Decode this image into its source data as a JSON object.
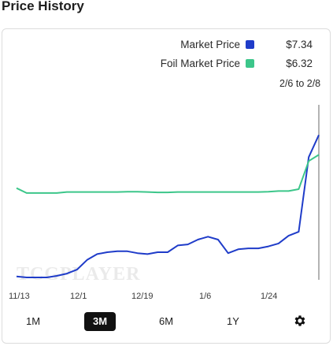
{
  "title": "Price History",
  "legend": {
    "market": {
      "label": "Market Price",
      "value": "$7.34",
      "color": "#1f3cc9"
    },
    "foil": {
      "label": "Foil Market Price",
      "value": "$6.32",
      "color": "#3cc68a"
    }
  },
  "range_label": "2/6 to 2/8",
  "watermark": "TCGPLAYER",
  "controls": {
    "items": [
      "1M",
      "3M",
      "6M",
      "1Y"
    ],
    "active": "3M",
    "settings_icon": "gear-icon"
  },
  "chart_data": {
    "type": "line",
    "x_tick_labels": [
      "11/13",
      "12/1",
      "12/19",
      "1/6",
      "1/24"
    ],
    "ylim": [
      0,
      8
    ],
    "grid": false,
    "series": [
      {
        "name": "Market Price",
        "color": "#1f3cc9",
        "values": [
          0.05,
          0.0,
          0.0,
          0.0,
          0.08,
          0.2,
          0.4,
          0.9,
          1.2,
          1.3,
          1.35,
          1.35,
          1.25,
          1.2,
          1.3,
          1.3,
          1.65,
          1.7,
          1.95,
          2.1,
          1.95,
          1.25,
          1.45,
          1.5,
          1.5,
          1.6,
          1.75,
          2.15,
          2.35,
          6.2,
          7.34
        ]
      },
      {
        "name": "Foil Market Price",
        "color": "#3cc68a",
        "values": [
          4.6,
          4.35,
          4.35,
          4.35,
          4.35,
          4.4,
          4.4,
          4.4,
          4.4,
          4.4,
          4.4,
          4.42,
          4.42,
          4.4,
          4.38,
          4.38,
          4.4,
          4.4,
          4.4,
          4.4,
          4.4,
          4.4,
          4.4,
          4.4,
          4.4,
          4.42,
          4.45,
          4.45,
          4.55,
          6.0,
          6.32
        ]
      }
    ]
  }
}
